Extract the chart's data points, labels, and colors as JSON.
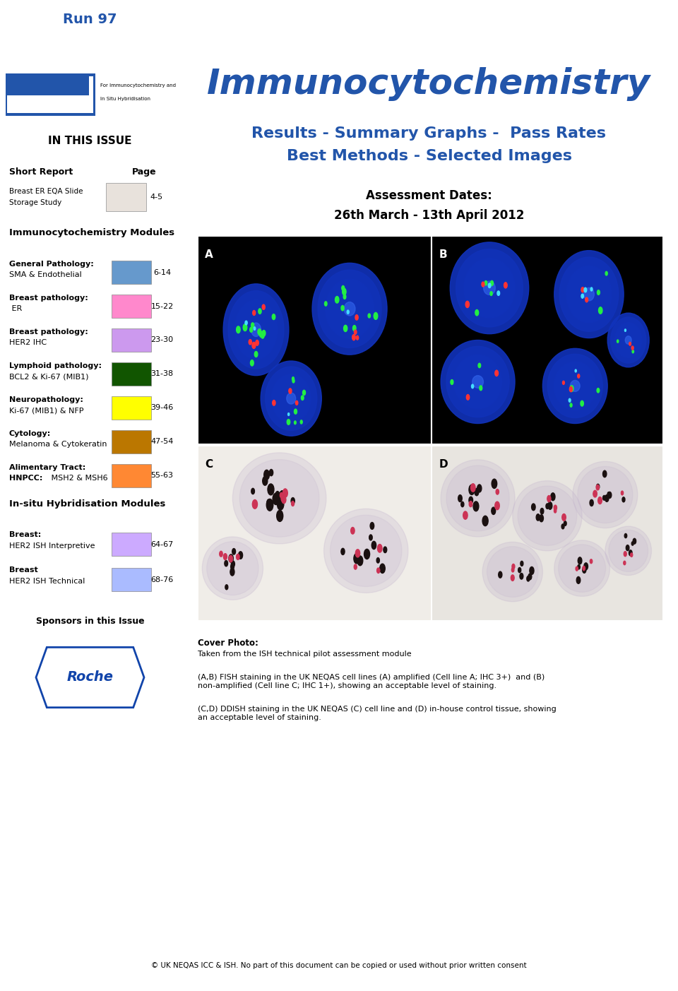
{
  "left_bg": "#cde0ea",
  "right_bg": "#ffffff",
  "run_title": "Run 97",
  "main_title": "Immunocytochemistry",
  "subtitle1": "Results - Summary Graphs -  Pass Rates",
  "subtitle2": "Best Methods - Selected Images",
  "assessment_label": "Assessment Dates:",
  "assessment_dates": "26th March - 13th April 2012",
  "in_this_issue": "IN THIS ISSUE",
  "short_report_label": "Short Report",
  "page_label": "Page",
  "short_report_item_line1": "Breast ER EQA Slide",
  "short_report_item_line2": "Storage Study",
  "short_report_page": "4-5",
  "icc_section": "Immunocytochemistry Modules",
  "icc_items": [
    {
      "bold": "General Pathology:",
      "normal": "SMA & Endothelial",
      "color": "#6699cc",
      "page": "6-14"
    },
    {
      "bold": "Breast pathology:",
      "normal": " ER",
      "color": "#ff88cc",
      "page": "15-22"
    },
    {
      "bold": "Breast pathology:",
      "normal": "HER2 IHC",
      "color": "#cc99ee",
      "page": "23-30"
    },
    {
      "bold": "Lymphoid pathology:",
      "normal": "BCL2 & Ki-67 (MIB1)",
      "color": "#115500",
      "page": "31-38"
    },
    {
      "bold": "Neuropathology:",
      "normal": "Ki-67 (MIB1) & NFP",
      "color": "#ffff00",
      "page": "39-46"
    },
    {
      "bold": "Cytology:",
      "normal": "Melanoma & Cytokeratin",
      "color": "#bb7700",
      "page": "47-54"
    },
    {
      "bold": "Alimentary Tract:",
      "normal_bold": "HNPCC:",
      "normal": " MSH2 & MSH6",
      "color": "#ff8833",
      "page": "55-63"
    }
  ],
  "ish_section": "In-situ Hybridisation Modules",
  "ish_items": [
    {
      "bold": "Breast:",
      "normal": "HER2 ISH Interpretive",
      "color": "#ccaaff",
      "page": "64-67"
    },
    {
      "bold": "Breast",
      "normal": "HER2 ISH Technical",
      "color": "#aabbff",
      "page": "68-76"
    }
  ],
  "sponsors_label": "Sponsors in this Issue",
  "cover_photo_label": "Cover Photo:",
  "cover_photo_text": "Taken from the ISH technical pilot assessment module",
  "para1": "(A,B) FISH staining in the UK NEQAS cell lines (A) amplified (Cell line A; IHC 3+)  and (B)\nnon-amplified (Cell line C; IHC 1+), showing an acceptable level of staining.",
  "para2": "(C,D) DDISH staining in the UK NEQAS (C) cell line and (D) in-house control tissue, showing\nan acceptable level of staining.",
  "footer": "© UK NEQAS ICC & ISH. No part of this document can be copied or used without prior written consent",
  "header_line_color": "#2255aa",
  "blue_text_color": "#2255aa",
  "footer_line_color": "#2255aa"
}
